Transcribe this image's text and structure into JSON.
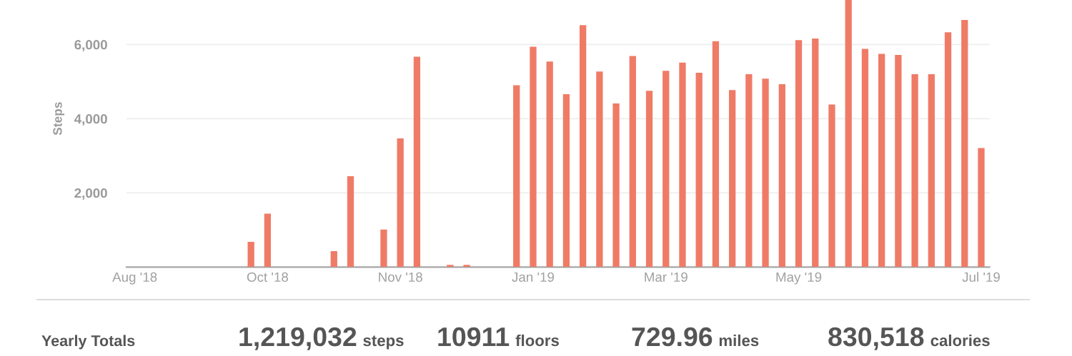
{
  "chart_data": {
    "type": "bar",
    "ylabel": "Steps",
    "categories": [
      "Aug '18",
      null,
      null,
      null,
      null,
      null,
      null,
      null,
      "Oct '18",
      null,
      null,
      null,
      null,
      null,
      null,
      null,
      "Nov '18",
      null,
      null,
      null,
      null,
      null,
      null,
      null,
      "Jan '19",
      null,
      null,
      null,
      null,
      null,
      null,
      null,
      "Mar '19",
      null,
      null,
      null,
      null,
      null,
      null,
      null,
      "May '19",
      null,
      null,
      null,
      null,
      null,
      null,
      null,
      null,
      null,
      null,
      "Jul '19"
    ],
    "values": [
      null,
      null,
      null,
      null,
      null,
      null,
      null,
      680,
      1440,
      null,
      null,
      null,
      430,
      2450,
      null,
      1010,
      3470,
      5670,
      null,
      60,
      60,
      null,
      null,
      4900,
      5940,
      5540,
      4660,
      6520,
      5270,
      4410,
      5690,
      4750,
      5290,
      5510,
      5240,
      6090,
      4770,
      5200,
      5080,
      4930,
      6120,
      6160,
      4380,
      7200,
      5880,
      5750,
      5720,
      5200,
      5200,
      6330,
      6660,
      3210
    ],
    "color": "#ef7b67",
    "ylim": [
      0,
      7200
    ],
    "yticks": [
      {
        "value": 2000,
        "label": "2,000"
      },
      {
        "value": 4000,
        "label": "4,000"
      },
      {
        "value": 6000,
        "label": "6,000"
      }
    ],
    "grid": "y",
    "annotations": [
      "Yearly Totals",
      "1,219,032",
      "steps",
      "10911",
      "floors",
      "729.96",
      "miles",
      "830,518",
      "calories"
    ]
  }
}
